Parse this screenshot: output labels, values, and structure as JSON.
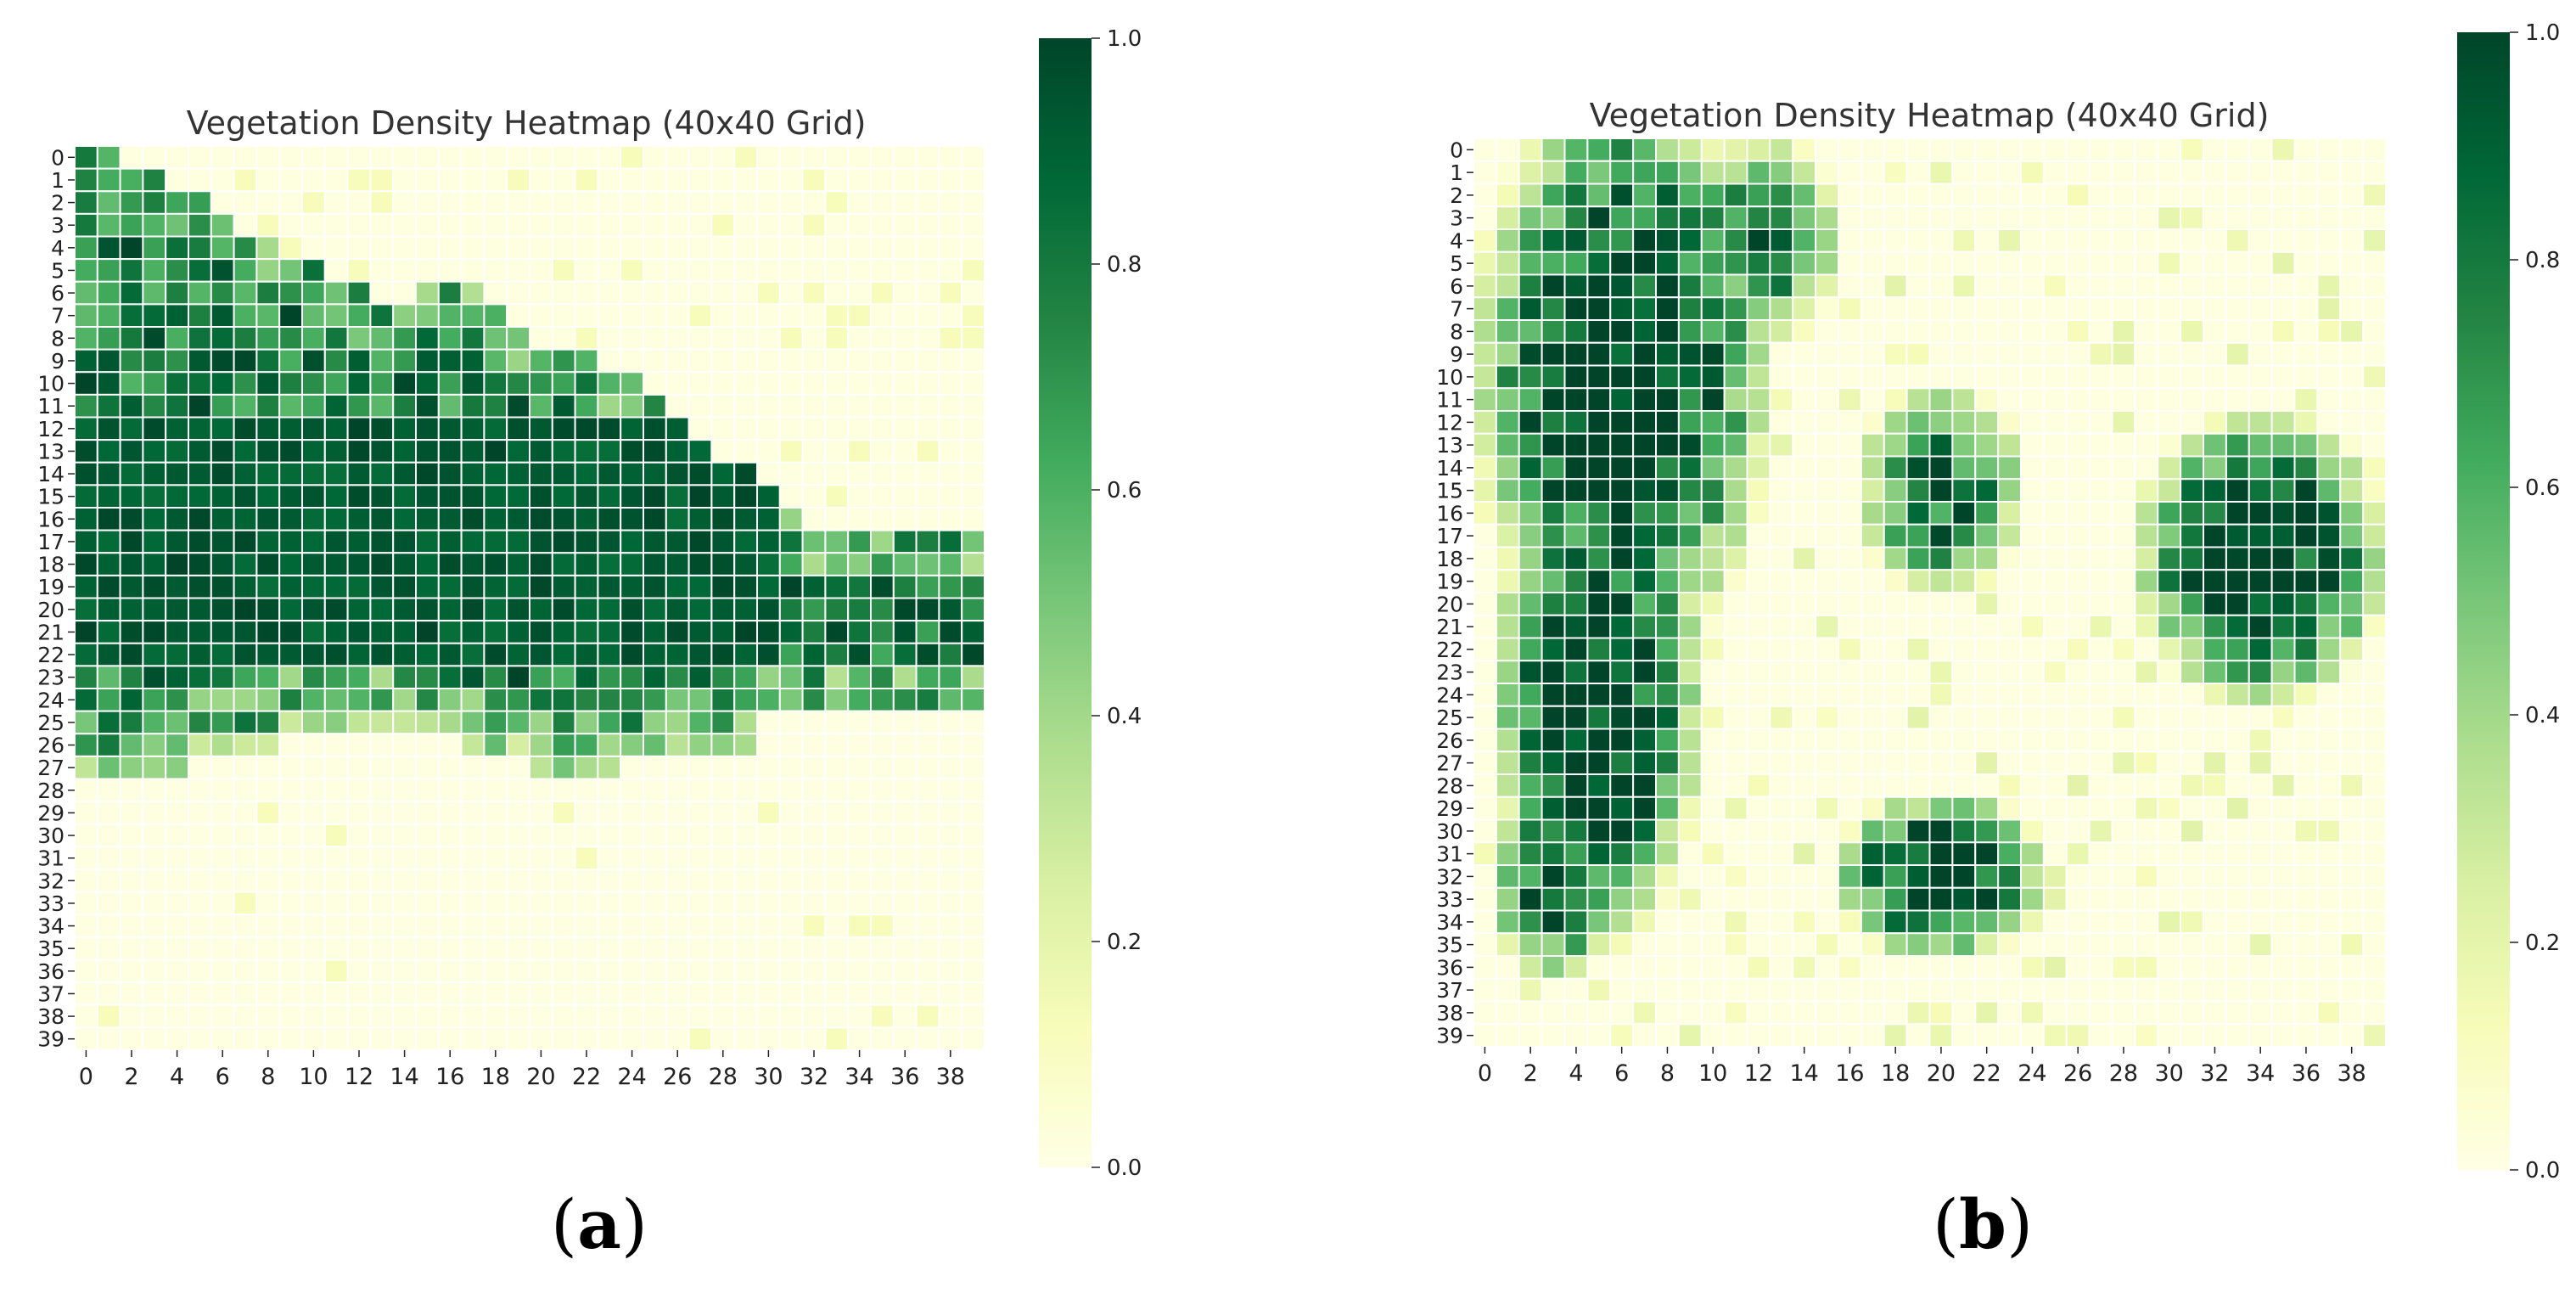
{
  "figure": {
    "panels": [
      {
        "id": "a",
        "label_open": "(",
        "label_letter": "a",
        "label_close": ")"
      },
      {
        "id": "b",
        "label_open": "(",
        "label_letter": "b",
        "label_close": ")"
      }
    ]
  },
  "colors": {
    "colormap": "YlGn",
    "stops": [
      "#ffffe5",
      "#f7fcb9",
      "#d9f0a3",
      "#addd8e",
      "#78c679",
      "#41ab5d",
      "#238443",
      "#006837",
      "#004529"
    ],
    "cell_border": "#ffffff"
  },
  "chart_data": [
    {
      "type": "heatmap",
      "title": "Vegetation Density Heatmap (40x40 Grid)",
      "rows": 40,
      "cols": 40,
      "x_tick_labels": [
        "0",
        "2",
        "4",
        "6",
        "8",
        "10",
        "12",
        "14",
        "16",
        "18",
        "20",
        "22",
        "24",
        "26",
        "28",
        "30",
        "32",
        "34",
        "36",
        "38"
      ],
      "y_tick_labels": [
        "0",
        "1",
        "2",
        "3",
        "4",
        "5",
        "6",
        "7",
        "8",
        "9",
        "10",
        "11",
        "12",
        "13",
        "14",
        "15",
        "16",
        "17",
        "18",
        "19",
        "20",
        "21",
        "22",
        "23",
        "24",
        "25",
        "26",
        "27",
        "28",
        "29",
        "30",
        "31",
        "32",
        "33",
        "34",
        "35",
        "36",
        "37",
        "38",
        "39"
      ],
      "colorbar": {
        "range": [
          0,
          1
        ],
        "tick_labels": [
          "0.0",
          "0.2",
          "0.4",
          "0.6",
          "0.8",
          "1.0"
        ]
      },
      "values_note_free": true,
      "values": []
    },
    {
      "type": "heatmap",
      "title": "Vegetation Density Heatmap (40x40 Grid)",
      "rows": 40,
      "cols": 40,
      "x_tick_labels": [
        "0",
        "2",
        "4",
        "6",
        "8",
        "10",
        "12",
        "14",
        "16",
        "18",
        "20",
        "22",
        "24",
        "26",
        "28",
        "30",
        "32",
        "34",
        "36",
        "38"
      ],
      "y_tick_labels": [
        "0",
        "1",
        "2",
        "3",
        "4",
        "5",
        "6",
        "7",
        "8",
        "9",
        "10",
        "11",
        "12",
        "13",
        "14",
        "15",
        "16",
        "17",
        "18",
        "19",
        "20",
        "21",
        "22",
        "23",
        "24",
        "25",
        "26",
        "27",
        "28",
        "29",
        "30",
        "31",
        "32",
        "33",
        "34",
        "35",
        "36",
        "37",
        "38",
        "39"
      ],
      "colorbar": {
        "range": [
          0,
          1
        ],
        "tick_labels": [
          "0.0",
          "0.2",
          "0.4",
          "0.6",
          "0.8",
          "1.0"
        ]
      },
      "values": []
    }
  ]
}
